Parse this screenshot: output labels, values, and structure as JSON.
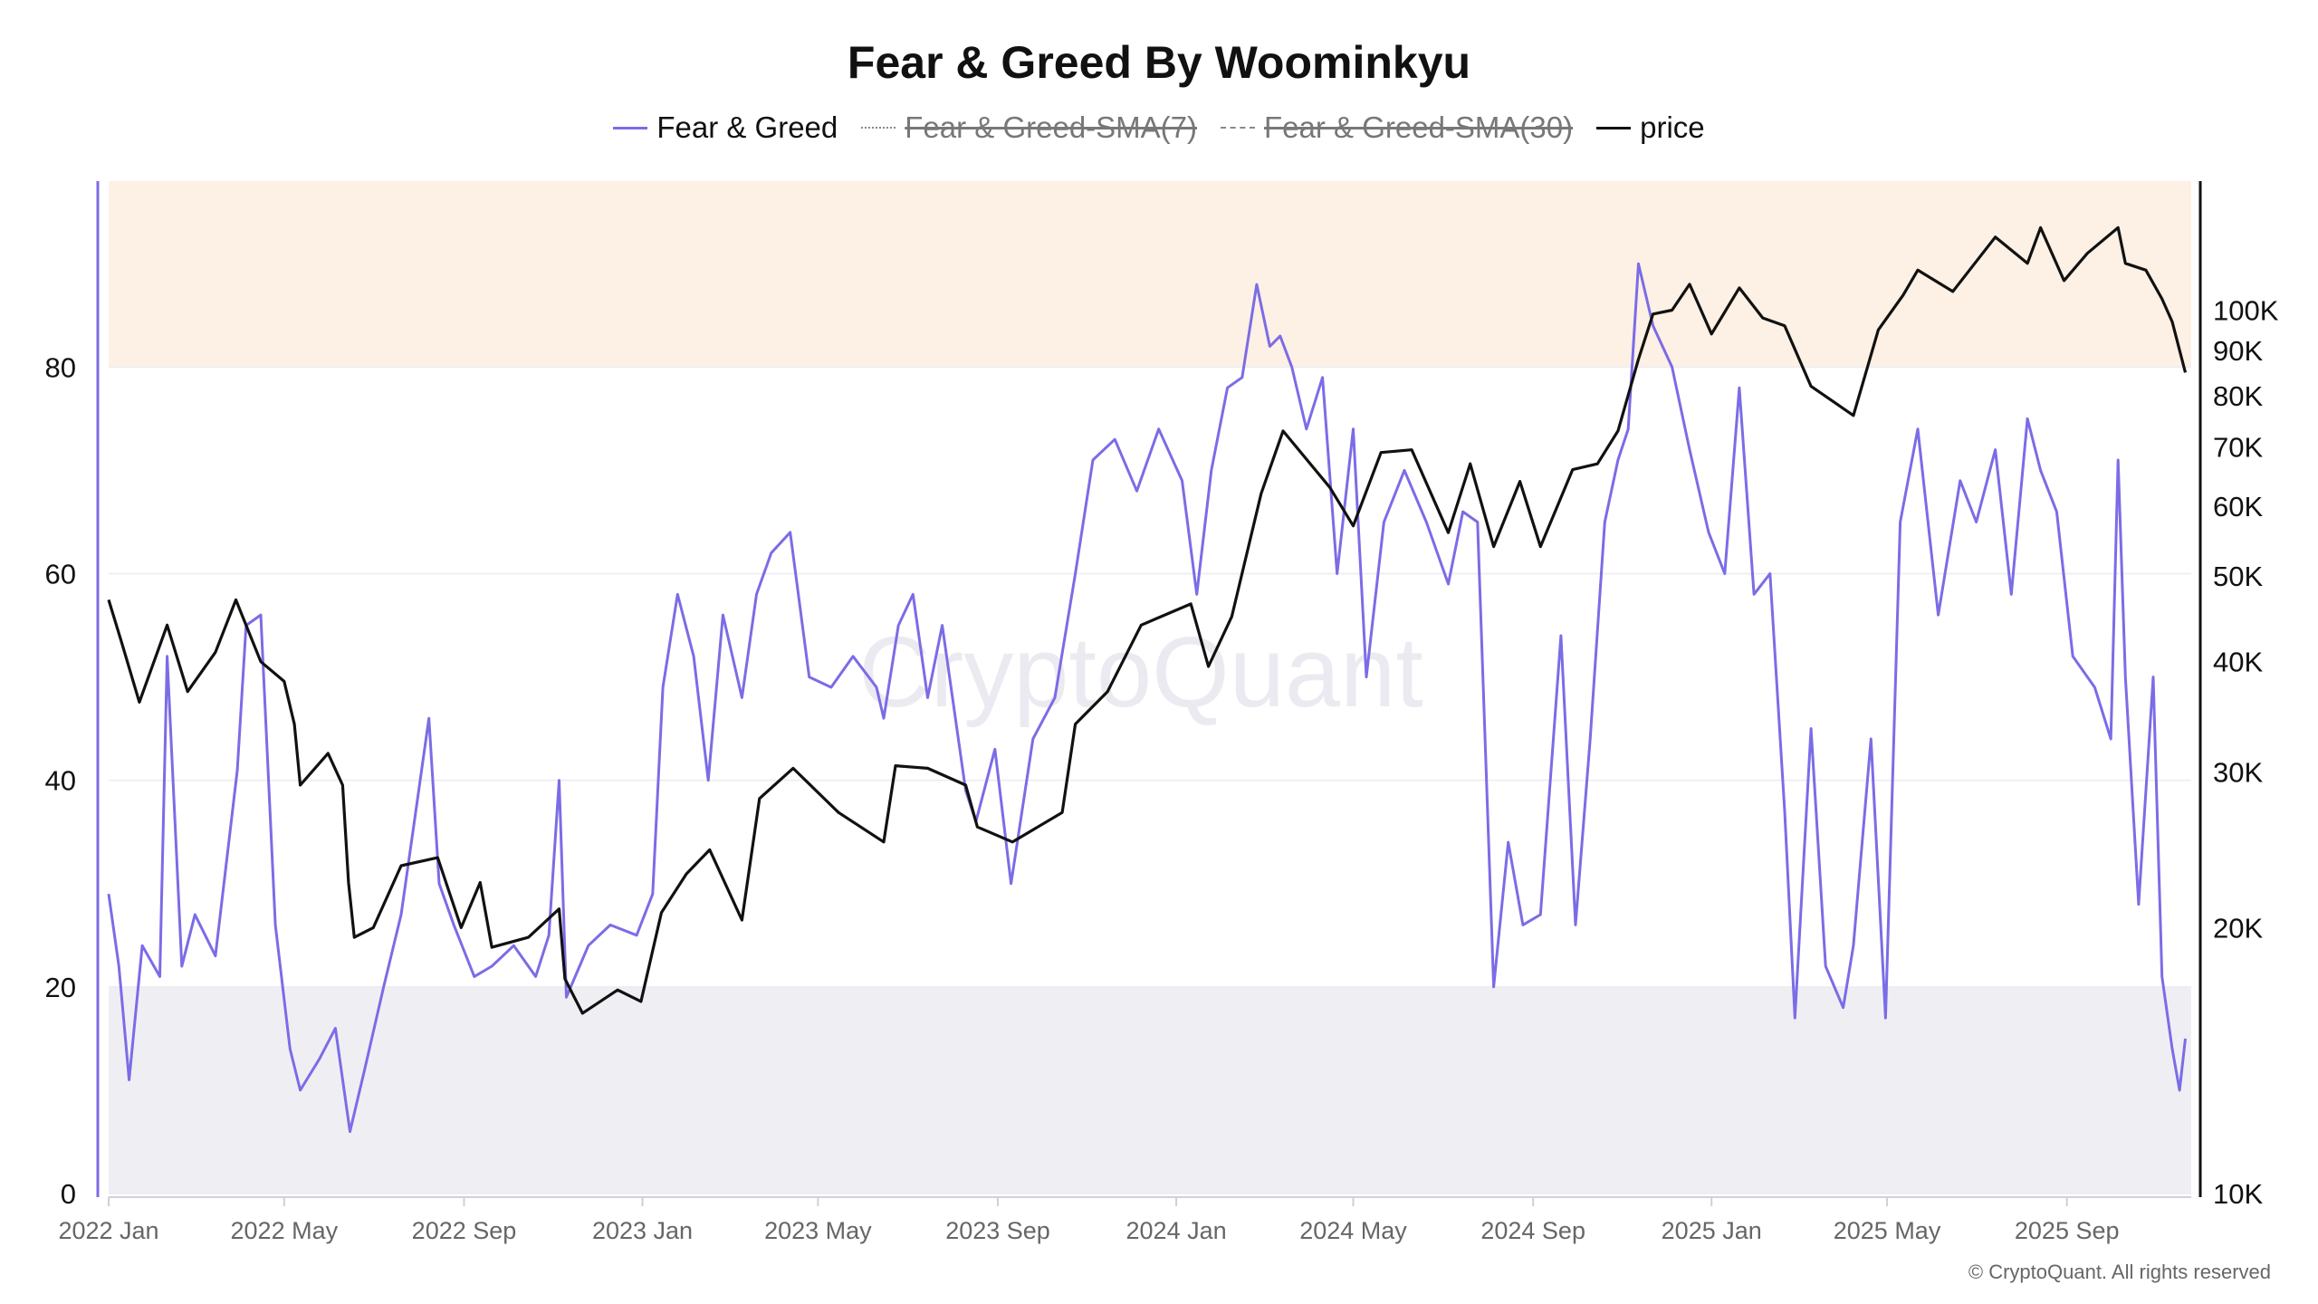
{
  "chart_data": {
    "type": "line",
    "title": "Fear & Greed By Woominkyu",
    "x_ticks": [
      "2022 Jan",
      "2022 May",
      "2022 Sep",
      "2023 Jan",
      "2023 May",
      "2023 Sep",
      "2024 Jan",
      "2024 May",
      "2024 Sep",
      "2025 Jan",
      "2025 May",
      "2025 Sep"
    ],
    "xlim": [
      "2022-01-01",
      "2025-11-25"
    ],
    "y_left": {
      "ticks": [
        "0",
        "20",
        "40",
        "60",
        "80"
      ],
      "ylim": [
        0,
        98
      ]
    },
    "y_right": {
      "ticks": [
        "10K",
        "20K",
        "30K",
        "40K",
        "50K",
        "60K",
        "70K",
        "80K",
        "90K",
        "100K"
      ],
      "scale": "log",
      "ylim": [
        10000,
        140000
      ]
    },
    "bands": [
      {
        "from": 80,
        "to": 98,
        "color": "#fdf0e4"
      },
      {
        "from": 0,
        "to": 20,
        "color": "#efeff3"
      }
    ],
    "legend": [
      {
        "label": "Fear & Greed",
        "style": "solid",
        "color": "#7b6ce6",
        "visible": true
      },
      {
        "label": "Fear & Greed-SMA(7)",
        "style": "dotted",
        "color": "#999999",
        "visible": false
      },
      {
        "label": "Fear & Greed-SMA(30)",
        "style": "dashed",
        "color": "#999999",
        "visible": false
      },
      {
        "label": "price",
        "style": "solid",
        "color": "#111111",
        "visible": true
      }
    ],
    "legend_position": "top-center",
    "grid": true,
    "series": [
      {
        "name": "Fear & Greed",
        "axis": "left",
        "color": "#7b6ce6",
        "x": [
          "2022-01-01",
          "2022-01-08",
          "2022-01-15",
          "2022-01-24",
          "2022-02-05",
          "2022-02-10",
          "2022-02-20",
          "2022-03-01",
          "2022-03-15",
          "2022-03-30",
          "2022-04-05",
          "2022-04-15",
          "2022-04-25",
          "2022-05-05",
          "2022-05-12",
          "2022-05-25",
          "2022-06-05",
          "2022-06-15",
          "2022-06-25",
          "2022-07-08",
          "2022-07-20",
          "2022-07-30",
          "2022-08-08",
          "2022-08-15",
          "2022-08-25",
          "2022-09-08",
          "2022-09-20",
          "2022-10-05",
          "2022-10-20",
          "2022-10-29",
          "2022-11-05",
          "2022-11-10",
          "2022-11-25",
          "2022-12-10",
          "2022-12-28",
          "2023-01-08",
          "2023-01-15",
          "2023-01-25",
          "2023-02-05",
          "2023-02-15",
          "2023-02-25",
          "2023-03-10",
          "2023-03-20",
          "2023-03-30",
          "2023-04-12",
          "2023-04-25",
          "2023-05-10",
          "2023-05-25",
          "2023-06-10",
          "2023-06-15",
          "2023-06-25",
          "2023-07-05",
          "2023-07-15",
          "2023-07-25",
          "2023-08-10",
          "2023-08-17",
          "2023-08-30",
          "2023-09-10",
          "2023-09-25",
          "2023-10-10",
          "2023-10-24",
          "2023-11-05",
          "2023-11-20",
          "2023-12-05",
          "2023-12-20",
          "2024-01-05",
          "2024-01-15",
          "2024-01-25",
          "2024-02-05",
          "2024-02-15",
          "2024-02-25",
          "2024-03-05",
          "2024-03-12",
          "2024-03-20",
          "2024-03-30",
          "2024-04-10",
          "2024-04-20",
          "2024-05-01",
          "2024-05-10",
          "2024-05-22",
          "2024-06-05",
          "2024-06-20",
          "2024-07-05",
          "2024-07-15",
          "2024-07-25",
          "2024-08-05",
          "2024-08-15",
          "2024-08-25",
          "2024-09-06",
          "2024-09-20",
          "2024-09-30",
          "2024-10-10",
          "2024-10-20",
          "2024-10-29",
          "2024-11-05",
          "2024-11-12",
          "2024-11-22",
          "2024-12-05",
          "2024-12-17",
          "2024-12-30",
          "2025-01-10",
          "2025-01-20",
          "2025-01-30",
          "2025-02-10",
          "2025-02-20",
          "2025-02-27",
          "2025-03-10",
          "2025-03-20",
          "2025-04-01",
          "2025-04-08",
          "2025-04-20",
          "2025-04-30",
          "2025-05-10",
          "2025-05-22",
          "2025-06-05",
          "2025-06-20",
          "2025-07-01",
          "2025-07-14",
          "2025-07-25",
          "2025-08-05",
          "2025-08-14",
          "2025-08-25",
          "2025-09-05",
          "2025-09-20",
          "2025-10-01",
          "2025-10-06",
          "2025-10-11",
          "2025-10-20",
          "2025-10-30",
          "2025-11-05",
          "2025-11-12",
          "2025-11-17",
          "2025-11-21"
        ],
        "values": [
          29,
          22,
          11,
          24,
          21,
          52,
          22,
          27,
          23,
          41,
          55,
          56,
          26,
          14,
          10,
          13,
          16,
          6,
          12,
          20,
          27,
          37,
          46,
          30,
          26,
          21,
          22,
          24,
          21,
          25,
          40,
          19,
          24,
          26,
          25,
          29,
          49,
          58,
          52,
          40,
          56,
          48,
          58,
          62,
          64,
          50,
          49,
          52,
          49,
          46,
          55,
          58,
          48,
          55,
          39,
          36,
          43,
          30,
          44,
          48,
          60,
          71,
          73,
          68,
          74,
          69,
          58,
          70,
          78,
          79,
          88,
          82,
          83,
          80,
          74,
          79,
          60,
          74,
          50,
          65,
          70,
          65,
          59,
          66,
          65,
          20,
          34,
          26,
          27,
          54,
          26,
          44,
          65,
          71,
          74,
          90,
          84,
          80,
          72,
          64,
          60,
          78,
          58,
          60,
          37,
          17,
          45,
          22,
          18,
          24,
          44,
          17,
          65,
          74,
          56,
          69,
          65,
          72,
          58,
          75,
          70,
          66,
          52,
          49,
          44,
          71,
          50,
          28,
          50,
          21,
          14,
          10,
          15
        ],
        "ylim": [
          0,
          98
        ]
      },
      {
        "name": "price",
        "axis": "right",
        "color": "#111111",
        "x": [
          "2022-01-01",
          "2022-01-10",
          "2022-01-22",
          "2022-02-10",
          "2022-02-24",
          "2022-03-15",
          "2022-03-29",
          "2022-04-15",
          "2022-05-01",
          "2022-05-08",
          "2022-05-12",
          "2022-05-31",
          "2022-06-10",
          "2022-06-14",
          "2022-06-18",
          "2022-07-01",
          "2022-07-20",
          "2022-08-14",
          "2022-08-30",
          "2022-09-12",
          "2022-09-20",
          "2022-10-15",
          "2022-11-05",
          "2022-11-09",
          "2022-11-21",
          "2022-12-15",
          "2022-12-31",
          "2023-01-14",
          "2023-01-31",
          "2023-02-16",
          "2023-03-10",
          "2023-03-22",
          "2023-04-14",
          "2023-05-15",
          "2023-06-15",
          "2023-06-23",
          "2023-07-15",
          "2023-08-10",
          "2023-08-18",
          "2023-09-11",
          "2023-10-15",
          "2023-10-24",
          "2023-11-15",
          "2023-12-08",
          "2024-01-11",
          "2024-01-23",
          "2024-02-08",
          "2024-02-28",
          "2024-03-14",
          "2024-04-15",
          "2024-05-01",
          "2024-05-20",
          "2024-06-10",
          "2024-07-05",
          "2024-07-20",
          "2024-08-05",
          "2024-08-23",
          "2024-09-06",
          "2024-09-28",
          "2024-10-15",
          "2024-10-29",
          "2024-11-12",
          "2024-11-22",
          "2024-12-05",
          "2024-12-17",
          "2025-01-01",
          "2025-01-20",
          "2025-02-05",
          "2025-02-20",
          "2025-03-10",
          "2025-04-08",
          "2025-04-25",
          "2025-05-12",
          "2025-05-22",
          "2025-06-15",
          "2025-07-14",
          "2025-08-05",
          "2025-08-14",
          "2025-08-30",
          "2025-09-15",
          "2025-10-06",
          "2025-10-11",
          "2025-10-25",
          "2025-11-05",
          "2025-11-12",
          "2025-11-21"
        ],
        "values": [
          47000,
          42000,
          36000,
          44000,
          37000,
          41000,
          47000,
          40000,
          38000,
          34000,
          29000,
          31500,
          29000,
          22500,
          19500,
          20000,
          23500,
          24000,
          20000,
          22500,
          19000,
          19500,
          21000,
          17500,
          16000,
          17000,
          16500,
          20800,
          23000,
          24500,
          20400,
          28000,
          30300,
          27000,
          25000,
          30500,
          30300,
          29000,
          26000,
          25000,
          27000,
          34000,
          37000,
          44000,
          46500,
          39500,
          45000,
          62000,
          73000,
          63000,
          57000,
          69000,
          69500,
          56000,
          67000,
          54000,
          64000,
          54000,
          66000,
          67000,
          73000,
          88000,
          99000,
          100000,
          107000,
          94000,
          106000,
          98000,
          96000,
          82000,
          76000,
          95000,
          104000,
          111000,
          105000,
          121000,
          113000,
          124000,
          108000,
          116000,
          124000,
          113000,
          111000,
          103000,
          97000,
          85000
        ],
        "ylim": [
          10000,
          140000
        ]
      }
    ]
  },
  "footer": {
    "copyright": "© CryptoQuant. All rights reserved"
  },
  "watermark": "CryptoQuant"
}
